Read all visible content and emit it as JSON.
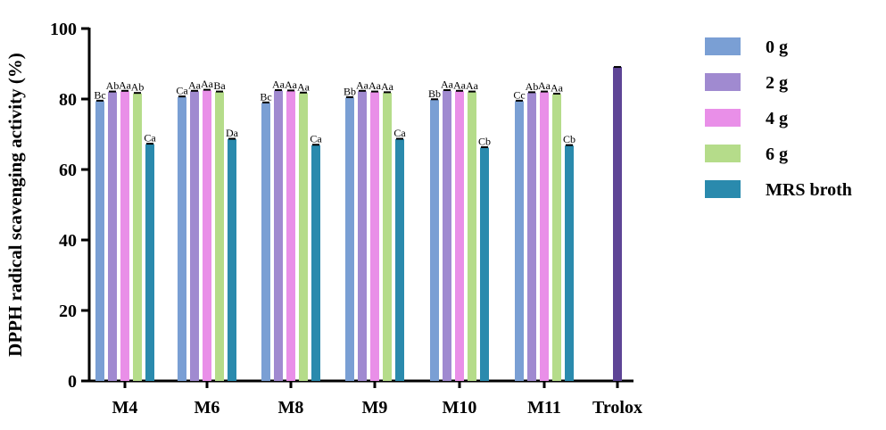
{
  "chart_data": {
    "type": "bar",
    "title": "",
    "xlabel": "",
    "ylabel": "DPPH radical scavenging activity (%)",
    "ylim": [
      0,
      100
    ],
    "yticks": [
      0,
      20,
      40,
      60,
      80,
      100
    ],
    "grid": false,
    "legend_placement": "right",
    "categories": [
      "M4",
      "M6",
      "M8",
      "M9",
      "M10",
      "M11",
      "Trolox"
    ],
    "series": [
      {
        "name": "0 g",
        "color": "#7a9fd4",
        "values": [
          79.4,
          80.6,
          78.9,
          80.4,
          79.8,
          79.4,
          null
        ],
        "labels": [
          "Bc",
          "Ca",
          "Bc",
          "Bb",
          "Bb",
          "Cc",
          ""
        ]
      },
      {
        "name": "2 g",
        "color": "#a08ad0",
        "values": [
          82.0,
          82.2,
          82.4,
          82.2,
          82.4,
          81.8,
          null
        ],
        "labels": [
          "Ab",
          "Aa",
          "Aa",
          "Aa",
          "Aa",
          "Ab",
          ""
        ]
      },
      {
        "name": "4 g",
        "color": "#e98fe8",
        "values": [
          82.2,
          82.5,
          82.3,
          82.0,
          82.2,
          82.0,
          null
        ],
        "labels": [
          "Aa",
          "Aa",
          "Aa",
          "Aa",
          "Aa",
          "Aa",
          ""
        ]
      },
      {
        "name": "6 g",
        "color": "#b5dc8a",
        "values": [
          81.6,
          82.0,
          81.7,
          81.8,
          82.0,
          81.4,
          null
        ],
        "labels": [
          "Ab",
          "Ba",
          "Aa",
          "Aa",
          "Aa",
          "Aa",
          ""
        ]
      },
      {
        "name": "MRS broth",
        "color": "#2a8aad",
        "values": [
          67.2,
          68.6,
          66.9,
          68.6,
          66.2,
          66.8,
          null
        ],
        "labels": [
          "Ca",
          "Da",
          "Ca",
          "Ca",
          "Cb",
          "Cb",
          ""
        ]
      }
    ],
    "trolox": {
      "value": 89.1,
      "color": "#5e4596"
    }
  }
}
